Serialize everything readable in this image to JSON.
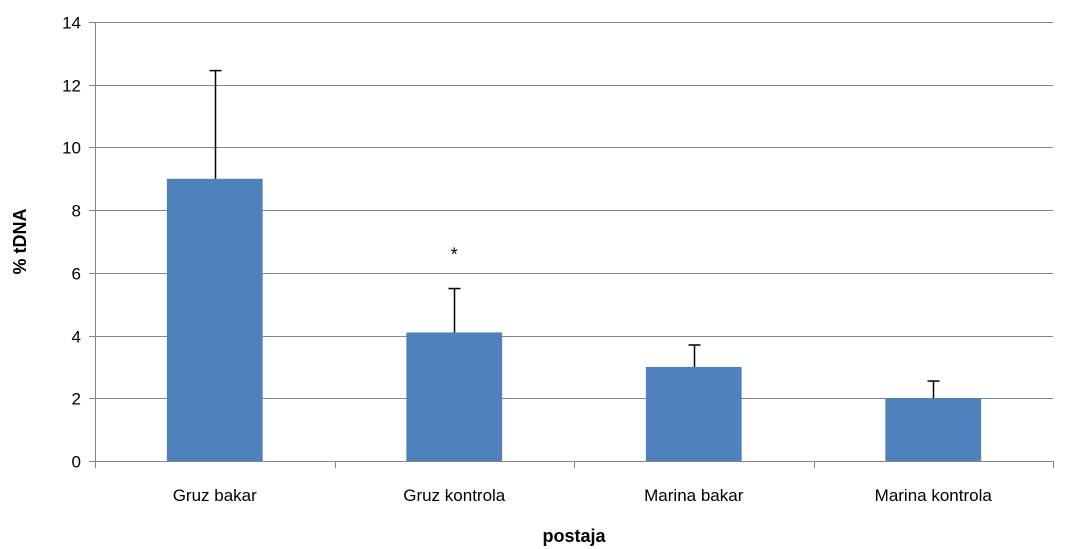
{
  "chart_data": {
    "type": "bar",
    "categories": [
      "Gruz bakar",
      "Gruz kontrola",
      "Marina bakar",
      "Marina kontrola"
    ],
    "values": [
      9.0,
      4.1,
      3.0,
      2.0
    ],
    "error_upper": [
      3.45,
      1.4,
      0.7,
      0.55
    ],
    "annotations": [
      {
        "category": "Gruz kontrola",
        "text": "*"
      }
    ],
    "title": "",
    "xlabel": "postaja",
    "ylabel": "% tDNA",
    "ylim": [
      0,
      14
    ],
    "yticks": [
      0,
      2,
      4,
      6,
      8,
      10,
      12,
      14
    ],
    "grid": true,
    "legend": "none",
    "colors": {
      "bar": "#4F81BD",
      "grid": "#868686",
      "axis": "#868686",
      "error_bar": "#000000"
    }
  }
}
